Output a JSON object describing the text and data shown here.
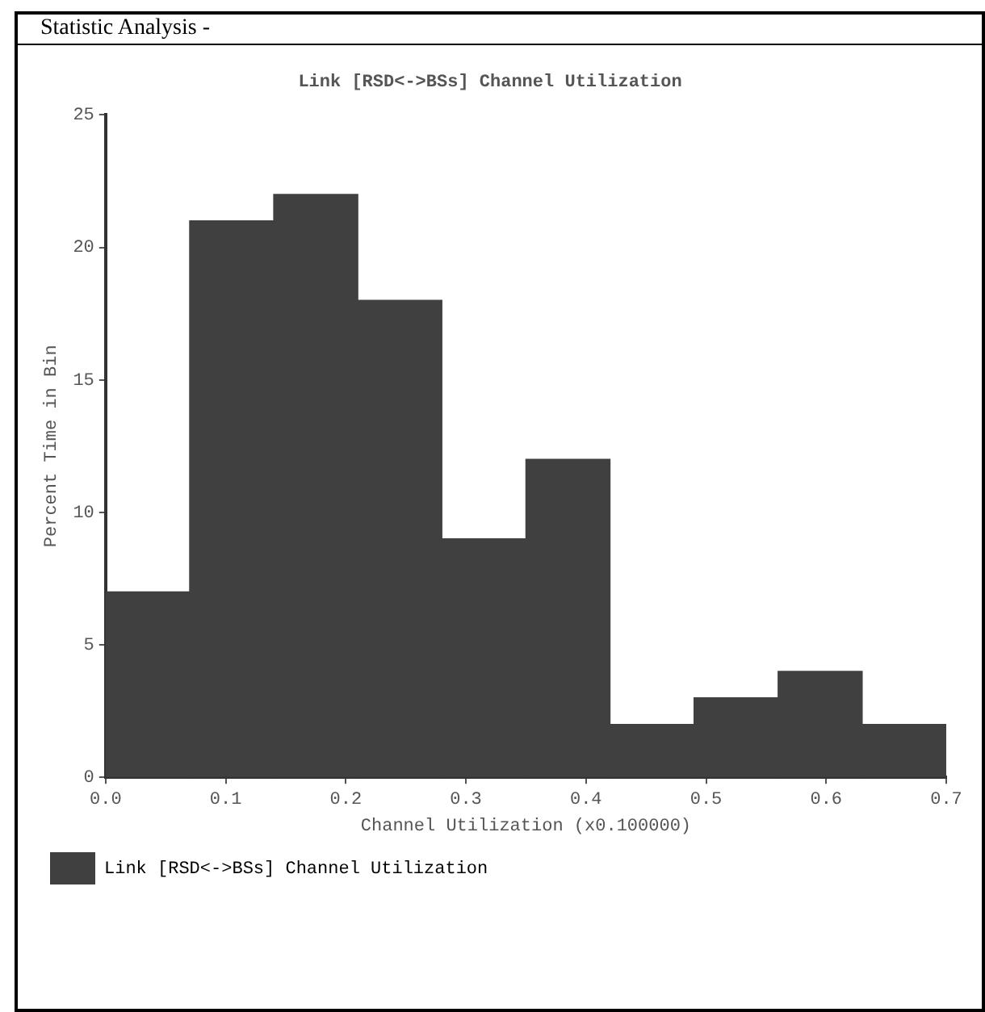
{
  "chart_data": {
    "type": "histogram",
    "title": "Link [RSD<->BSs] Channel Utilization",
    "xlabel": "Channel Utilization (x0.100000)",
    "ylabel": "Percent Time in Bin",
    "annotations": [
      "Statistic Analysis -"
    ],
    "bins": [
      0,
      0.07,
      0.14,
      0.21,
      0.28,
      0.35,
      0.42,
      0.49,
      0.56,
      0.63,
      0.7
    ],
    "series": [
      {
        "name": "Link [RSD<->BSs] Channel Utilization",
        "color": "#404040",
        "values": [
          7,
          21,
          22,
          18,
          9,
          12,
          2,
          3,
          4,
          2
        ]
      }
    ],
    "xlim": [
      0,
      0.7
    ],
    "xticks": [
      {
        "value": 0,
        "label": "0.0"
      },
      0.1,
      0.2,
      0.3,
      0.4,
      0.5,
      0.6,
      0.7
    ],
    "ylim": [
      0,
      25
    ],
    "yticks": [
      0,
      5,
      10,
      15,
      20,
      25
    ],
    "grid": false,
    "legend": "bottom left"
  }
}
